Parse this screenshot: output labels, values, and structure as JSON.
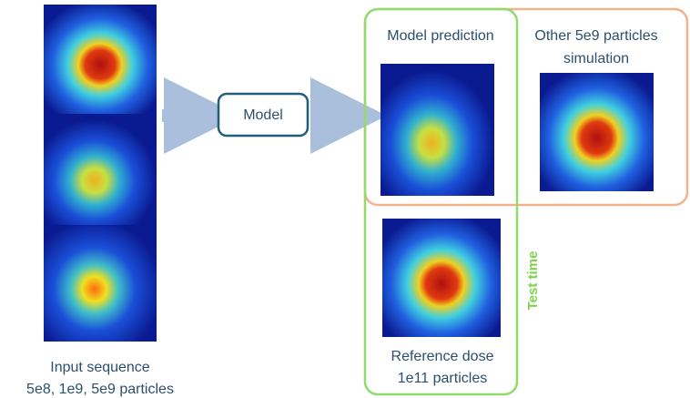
{
  "input": {
    "caption": [
      "Input sequence",
      "5e8, 1e9, 5e9 particles"
    ]
  },
  "model": {
    "label": "Model"
  },
  "prediction": {
    "label": "Model prediction"
  },
  "simulation": {
    "label": [
      "Other 5e9 particles",
      "simulation"
    ]
  },
  "reference": {
    "label": [
      "Reference dose",
      "1e11 particles"
    ]
  },
  "test_time": {
    "label": "Test time"
  }
}
